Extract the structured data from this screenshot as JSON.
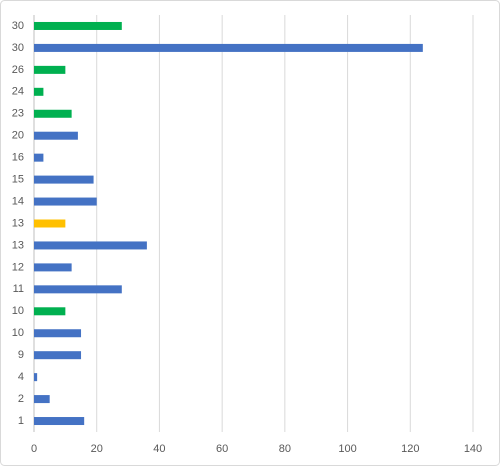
{
  "chart_data": {
    "type": "bar",
    "orientation": "horizontal",
    "categories": [
      "1",
      "2",
      "4",
      "9",
      "10",
      "10",
      "11",
      "12",
      "13",
      "13",
      "14",
      "15",
      "16",
      "20",
      "23",
      "24",
      "26",
      "30",
      "30"
    ],
    "values": [
      16,
      5,
      1,
      15,
      15,
      10,
      28,
      12,
      36,
      10,
      20,
      19,
      3,
      14,
      12,
      3,
      10,
      124,
      28
    ],
    "colors": [
      "#4472c4",
      "#4472c4",
      "#4472c4",
      "#4472c4",
      "#4472c4",
      "#00b050",
      "#4472c4",
      "#4472c4",
      "#4472c4",
      "#ffc000",
      "#4472c4",
      "#4472c4",
      "#4472c4",
      "#4472c4",
      "#00b050",
      "#00b050",
      "#00b050",
      "#4472c4",
      "#00b050"
    ],
    "xlim": [
      0,
      140
    ],
    "xticks": [
      0,
      20,
      40,
      60,
      80,
      100,
      120,
      140
    ],
    "grid": true
  }
}
